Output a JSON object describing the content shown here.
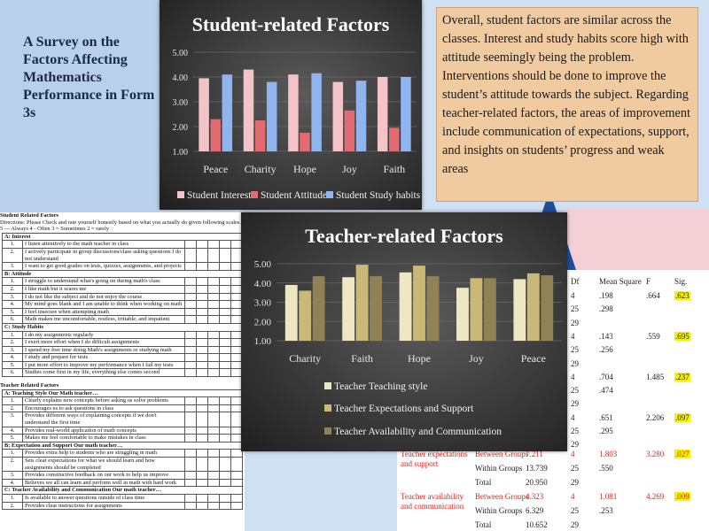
{
  "slide_title": "A Survey on the Factors Affecting Mathematics Performance in Form 3s",
  "summary_text": "Overall, student factors are similar across the classes. Interest and study habits score high with attitude seemingly being the problem. Interventions should be done to improve the student’s attitude towards the subject. Regarding teacher-related factors, the areas of improvement include communication of expectations, support, and insights on students’ progress and weak areas",
  "survey": {
    "student_title": "Student Related Factors",
    "directions": "Directions: Please Check and rate yourself honestly based on what you actually do given following scales.",
    "scale": "5 — Always     4 - Often     3 = Sometimes     2 = rarely",
    "sections": [
      {
        "title": "A: Interest",
        "items": [
          "I listen attentively to the math teacher in class",
          "I actively participate in group discussions/class asking questions I do not understand",
          "I want to get good grades on tests, quizzes, assignments, and projects"
        ]
      },
      {
        "title": "B: Attitude",
        "items": [
          "I struggle to understand what's going on during math's class",
          "I like math but it scares me",
          "I do not like the subject and do not enjoy the course",
          "My mind goes blank and I am unable to think when working on math",
          "I feel insecure when attempting math",
          "Math makes me uncomfortable, restless, irritable, and impatient"
        ]
      },
      {
        "title": "C: Study Habits",
        "items": [
          "I do my assignments regularly",
          "I exert more effort when I do difficult assignments",
          "I spend my free time doing Math's assignments or studying math",
          "I study and prepare for tests",
          "I put more effort to improve my performance when I fail my tests",
          "Studies come first in my life, everything else comes second"
        ]
      }
    ],
    "teacher_title": "Teacher Related Factors",
    "teacher_sections": [
      {
        "title": "A: Teaching Style",
        "sub": "Our Math teacher…",
        "items": [
          "Clearly explains new concepts before asking us solve problems",
          "Encourages us to ask questions in class",
          "Provides different ways of explaining concepts if we don't understand the first time",
          "Provides real-world application of math concepts",
          "Makes me feel comfortable to make mistakes in class"
        ]
      },
      {
        "title": "B: Expectation and Support",
        "sub": "Our math teacher…",
        "items": [
          "Provides extra help to students who are struggling in math",
          "Sets clear expectations for what we should learn and how assignments should be completed",
          "Provides constructive feedback on our work to help us improve",
          "Believes we all can learn and perform well in math with hard work"
        ]
      },
      {
        "title": "C: Teacher Availability and Communication",
        "sub": "Our math teacher…",
        "items": [
          "Is available to answer questions outside of class time",
          "Provides clear instructions for assignments"
        ]
      }
    ]
  },
  "anova": {
    "headers": [
      "Df",
      "Mean Square",
      "F",
      "Sig."
    ],
    "rows": [
      {
        "df": "4",
        "ms": ".198",
        "f": ".664",
        "sig": ".623",
        "hl": true
      },
      {
        "df": "25",
        "ms": ".298",
        "f": "",
        "sig": ""
      },
      {
        "df": "29",
        "ms": "",
        "f": "",
        "sig": ""
      },
      {
        "df": "4",
        "ms": ".143",
        "f": ".559",
        "sig": ".695",
        "hl": true
      },
      {
        "df": "25",
        "ms": ".256",
        "f": "",
        "sig": ""
      },
      {
        "df": "29",
        "ms": "",
        "f": "",
        "sig": ""
      },
      {
        "df": "4",
        "ms": ".704",
        "f": "1.485",
        "sig": ".237",
        "hl": true
      },
      {
        "df": "25",
        "ms": ".474",
        "f": "",
        "sig": ""
      },
      {
        "df": "29",
        "ms": "",
        "f": "",
        "sig": ""
      },
      {
        "df": "4",
        "ms": ".651",
        "f": "2.206",
        "sig": ".097",
        "hl": true
      },
      {
        "df": "25",
        "ms": ".295",
        "f": "",
        "sig": ""
      },
      {
        "df": "29",
        "ms": "",
        "f": "",
        "sig": ""
      }
    ],
    "groups": [
      {
        "factor": "Teacher expectations and support",
        "rows": [
          {
            "label": "Between Groups",
            "ss": "7.211",
            "df": "4",
            "ms": "1.803",
            "f": "3.280",
            "sig": ".027"
          },
          {
            "label": "Within Groups",
            "ss": "13.739",
            "df": "25",
            "ms": ".550",
            "f": "",
            "sig": ""
          },
          {
            "label": "Total",
            "ss": "20.950",
            "df": "29",
            "ms": "",
            "f": "",
            "sig": ""
          }
        ]
      },
      {
        "factor": "Teacher availability and communication",
        "rows": [
          {
            "label": "Between Groups",
            "ss": "4.323",
            "df": "4",
            "ms": "1.081",
            "f": "4.269",
            "sig": ".009"
          },
          {
            "label": "Within Groups",
            "ss": "6.329",
            "df": "25",
            "ms": ".253",
            "f": "",
            "sig": ""
          },
          {
            "label": "Total",
            "ss": "10.652",
            "df": "29",
            "ms": "",
            "f": "",
            "sig": ""
          }
        ]
      }
    ]
  },
  "chart_data": [
    {
      "type": "bar",
      "title": "Student-related Factors",
      "categories": [
        "Peace",
        "Charity",
        "Hope",
        "Joy",
        "Faith"
      ],
      "series": [
        {
          "name": "Student Interest",
          "color": "#f2c4c8",
          "values": [
            3.95,
            4.3,
            4.1,
            3.8,
            4.0
          ]
        },
        {
          "name": "Student Attitude",
          "color": "#e26b72",
          "values": [
            2.3,
            2.25,
            1.75,
            2.65,
            1.95
          ]
        },
        {
          "name": "Student Study habits",
          "color": "#8fb4ee",
          "values": [
            4.1,
            3.8,
            4.15,
            3.85,
            4.0
          ]
        }
      ],
      "ylim": [
        1.0,
        5.0
      ],
      "yticks": [
        "1.00",
        "2.00",
        "3.00",
        "4.00",
        "5.00"
      ],
      "legend": "bottom",
      "grid": true
    },
    {
      "type": "bar",
      "title": "Teacher-related Factors",
      "categories": [
        "Charity",
        "Faith",
        "Hope",
        "Joy",
        "Peace"
      ],
      "series": [
        {
          "name": "Teacher Teaching style",
          "color": "#efe6c4",
          "values": [
            3.9,
            4.3,
            4.55,
            3.75,
            4.2
          ]
        },
        {
          "name": "Teacher Expectations and Support",
          "color": "#c9b877",
          "values": [
            3.6,
            4.95,
            4.9,
            4.25,
            4.5
          ]
        },
        {
          "name": "Teacher Availability and Communication",
          "color": "#8f8255",
          "values": [
            4.35,
            4.35,
            4.35,
            4.25,
            4.4
          ]
        }
      ],
      "ylim": [
        1.0,
        5.0
      ],
      "yticks": [
        "1.00",
        "2.00",
        "3.00",
        "4.00",
        "5.00"
      ],
      "legend": "bottom",
      "grid": true
    }
  ]
}
